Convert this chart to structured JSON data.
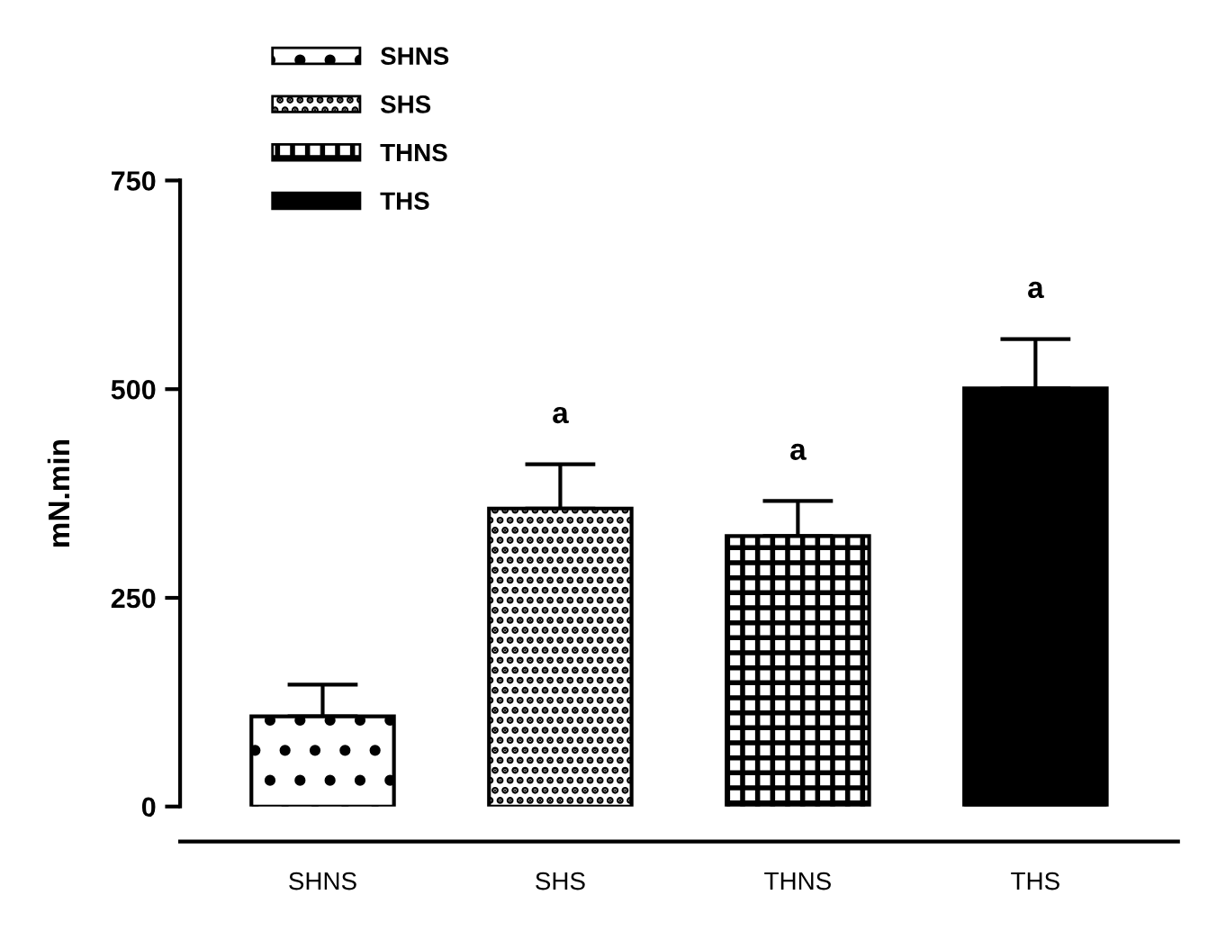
{
  "chart_data": {
    "type": "bar",
    "ylabel": "mN.min",
    "categories": [
      "SHNS",
      "SHS",
      "THNS",
      "THS"
    ],
    "series": [
      {
        "name": "SHNS",
        "color": "#000000",
        "values": [
          108,
          null,
          null,
          null
        ],
        "errors": [
          38,
          null,
          null,
          null
        ]
      },
      {
        "name": "SHS",
        "color": "#000000",
        "values": [
          null,
          357,
          null,
          null
        ],
        "errors": [
          null,
          53,
          null,
          null
        ]
      },
      {
        "name": "THNS",
        "color": "#000000",
        "values": [
          null,
          null,
          324,
          null
        ],
        "errors": [
          null,
          null,
          42,
          null
        ]
      },
      {
        "name": "THS",
        "color": "#000000",
        "values": [
          null,
          null,
          null,
          501
        ],
        "errors": [
          null,
          null,
          null,
          59
        ]
      }
    ],
    "ylim": [
      0,
      750
    ],
    "yticks": [
      0,
      250,
      500,
      750
    ],
    "legend": "top left",
    "annotations": [
      "a",
      "a",
      "a"
    ]
  }
}
